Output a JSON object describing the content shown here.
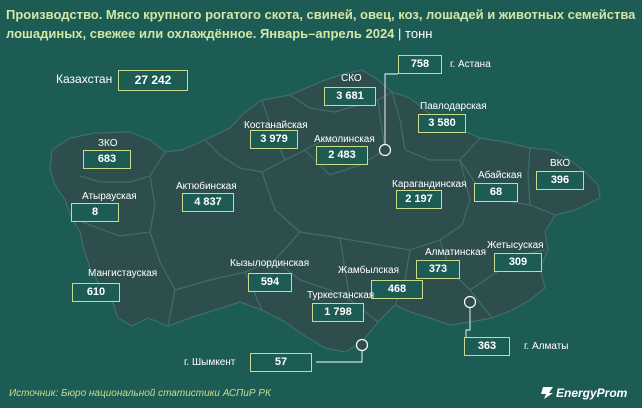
{
  "title": {
    "main": "Производство. Мясо крупного рогатого скота, свиней, овец, коз, лошадей и животных семейства лошадиных, свежее или охлаждённое. Январь–апрель 2024",
    "separator": "|",
    "unit": "тонн"
  },
  "total": {
    "label": "Казахстан",
    "value": "27 242"
  },
  "regions": {
    "sko": {
      "label": "СКО",
      "value": "3 681"
    },
    "astana": {
      "label": "г. Астана",
      "value": "758"
    },
    "pavlodar": {
      "label": "Павлодарская",
      "value": "3 580"
    },
    "kostanay": {
      "label": "Костанайская",
      "value": "3 979"
    },
    "akmola": {
      "label": "Акмолинская",
      "value": "2 483"
    },
    "zko": {
      "label": "ЗКО",
      "value": "683"
    },
    "atyrau": {
      "label": "Атырауская",
      "value": "8"
    },
    "aktobe": {
      "label": "Актюбинская",
      "value": "4 837"
    },
    "karaganda": {
      "label": "Карагандинская",
      "value": "2 197"
    },
    "abai": {
      "label": "Абайская",
      "value": "68"
    },
    "vko": {
      "label": "ВКО",
      "value": "396"
    },
    "mangystau": {
      "label": "Мангистауская",
      "value": "610"
    },
    "kyzylorda": {
      "label": "Кызылординская",
      "value": "594"
    },
    "zhambyl": {
      "label": "Жамбылская",
      "value": "468"
    },
    "almaty_reg": {
      "label": "Алматинская",
      "value": "373"
    },
    "zhetysu": {
      "label": "Жетысуская",
      "value": "309"
    },
    "turkestan": {
      "label": "Туркестанская",
      "value": "1 798"
    },
    "almaty_city": {
      "label": "г. Алматы",
      "value": "363"
    },
    "shymkent": {
      "label": "г. Шымкент",
      "value": "57"
    }
  },
  "footer": {
    "source": "Источник: Бюро национальной статистики АСПиР РК",
    "logo": "EnergyProm"
  },
  "colors": {
    "background": "#1d5b55",
    "region_fill": "#2e4e4e",
    "region_border": "#3f6e69",
    "accent": "#c9dc8e",
    "title": "#d2e6a6"
  }
}
